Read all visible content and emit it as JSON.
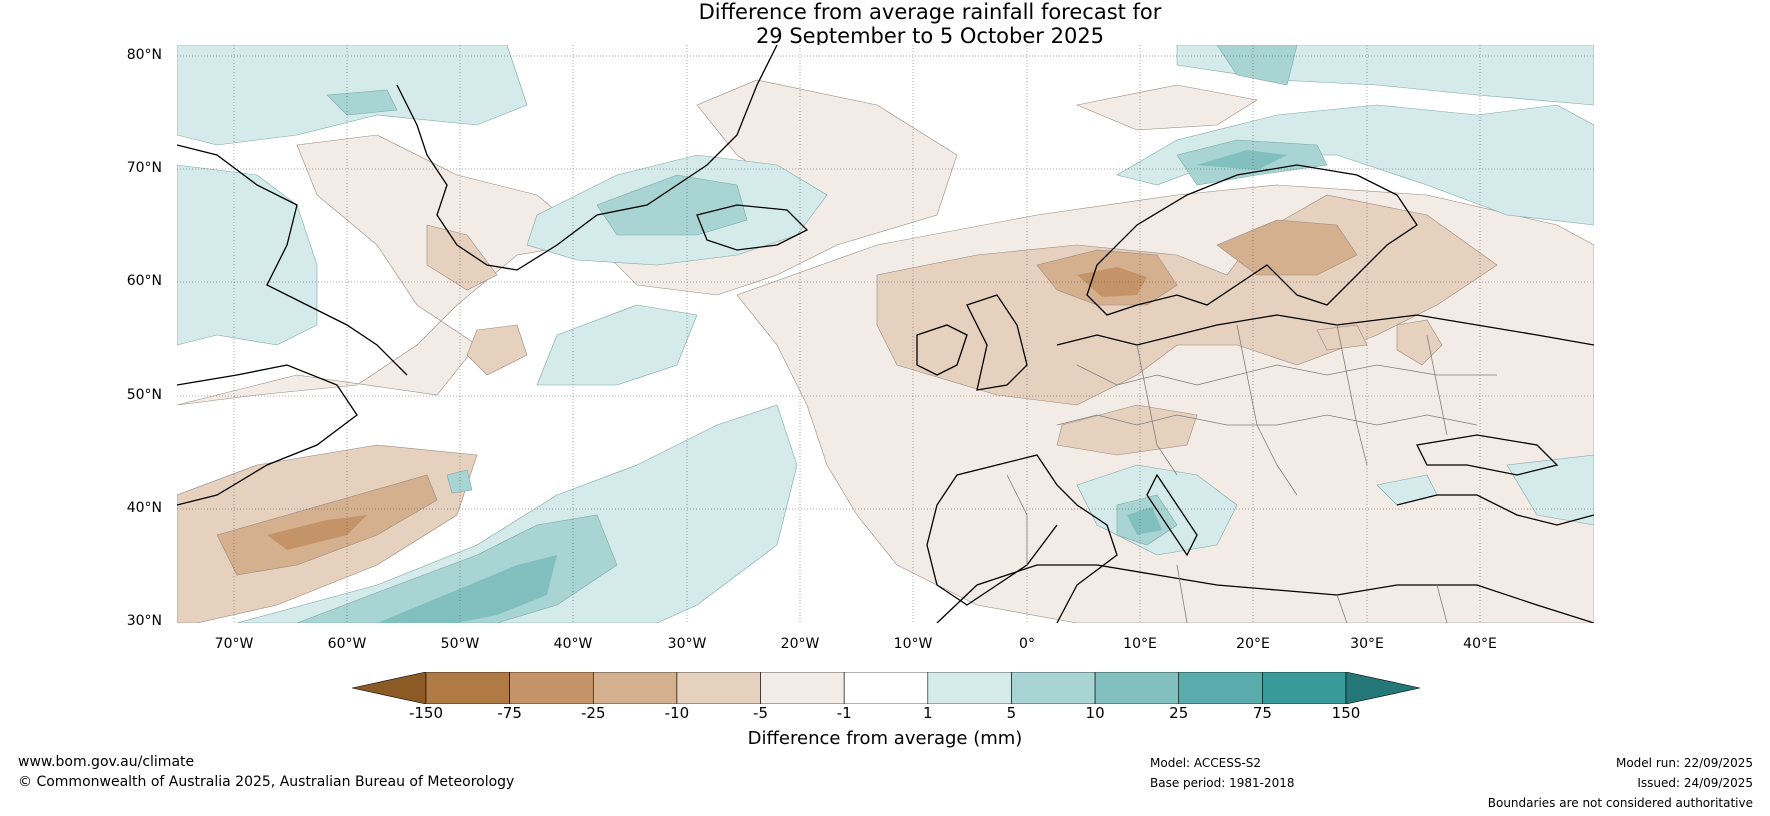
{
  "title": {
    "line1": "Difference from average rainfall forecast for",
    "line2": "29 September to 5 October 2025"
  },
  "map": {
    "region": "North Atlantic and Europe",
    "lat_range": [
      30,
      80
    ],
    "lon_range": [
      -75,
      50
    ],
    "lat_labels": [
      "80°N",
      "70°N",
      "60°N",
      "50°N",
      "40°N",
      "30°N"
    ],
    "lon_labels": [
      "70°W",
      "60°W",
      "50°W",
      "40°W",
      "30°W",
      "20°W",
      "10°W",
      "0°",
      "10°E",
      "20°E",
      "30°E",
      "40°E"
    ],
    "gridlines": true
  },
  "legend": {
    "tick_labels": [
      "-150",
      "-75",
      "-25",
      "-10",
      "-5",
      "-1",
      "1",
      "5",
      "10",
      "25",
      "75",
      "150"
    ],
    "colors": [
      "#8c5a24",
      "#b07a44",
      "#c49468",
      "#d4b08e",
      "#e6d0be",
      "#f3ebe5",
      "#ffffff",
      "#d5eaea",
      "#a8d4d4",
      "#82c0c0",
      "#5aabab",
      "#389a9a",
      "#267878"
    ],
    "caption": "Difference from average (mm)",
    "extend": "both"
  },
  "footer": {
    "website": "www.bom.gov.au/climate",
    "copyright": "© Commonwealth of Australia 2025, Australian Bureau of Meteorology",
    "model": "Model: ACCESS-S2",
    "base_period": "Base period: 1981-2018",
    "model_run": "Model run: 22/09/2025",
    "issued": "Issued: 24/09/2025",
    "disclaimer": "Boundaries are not considered authoritative"
  }
}
